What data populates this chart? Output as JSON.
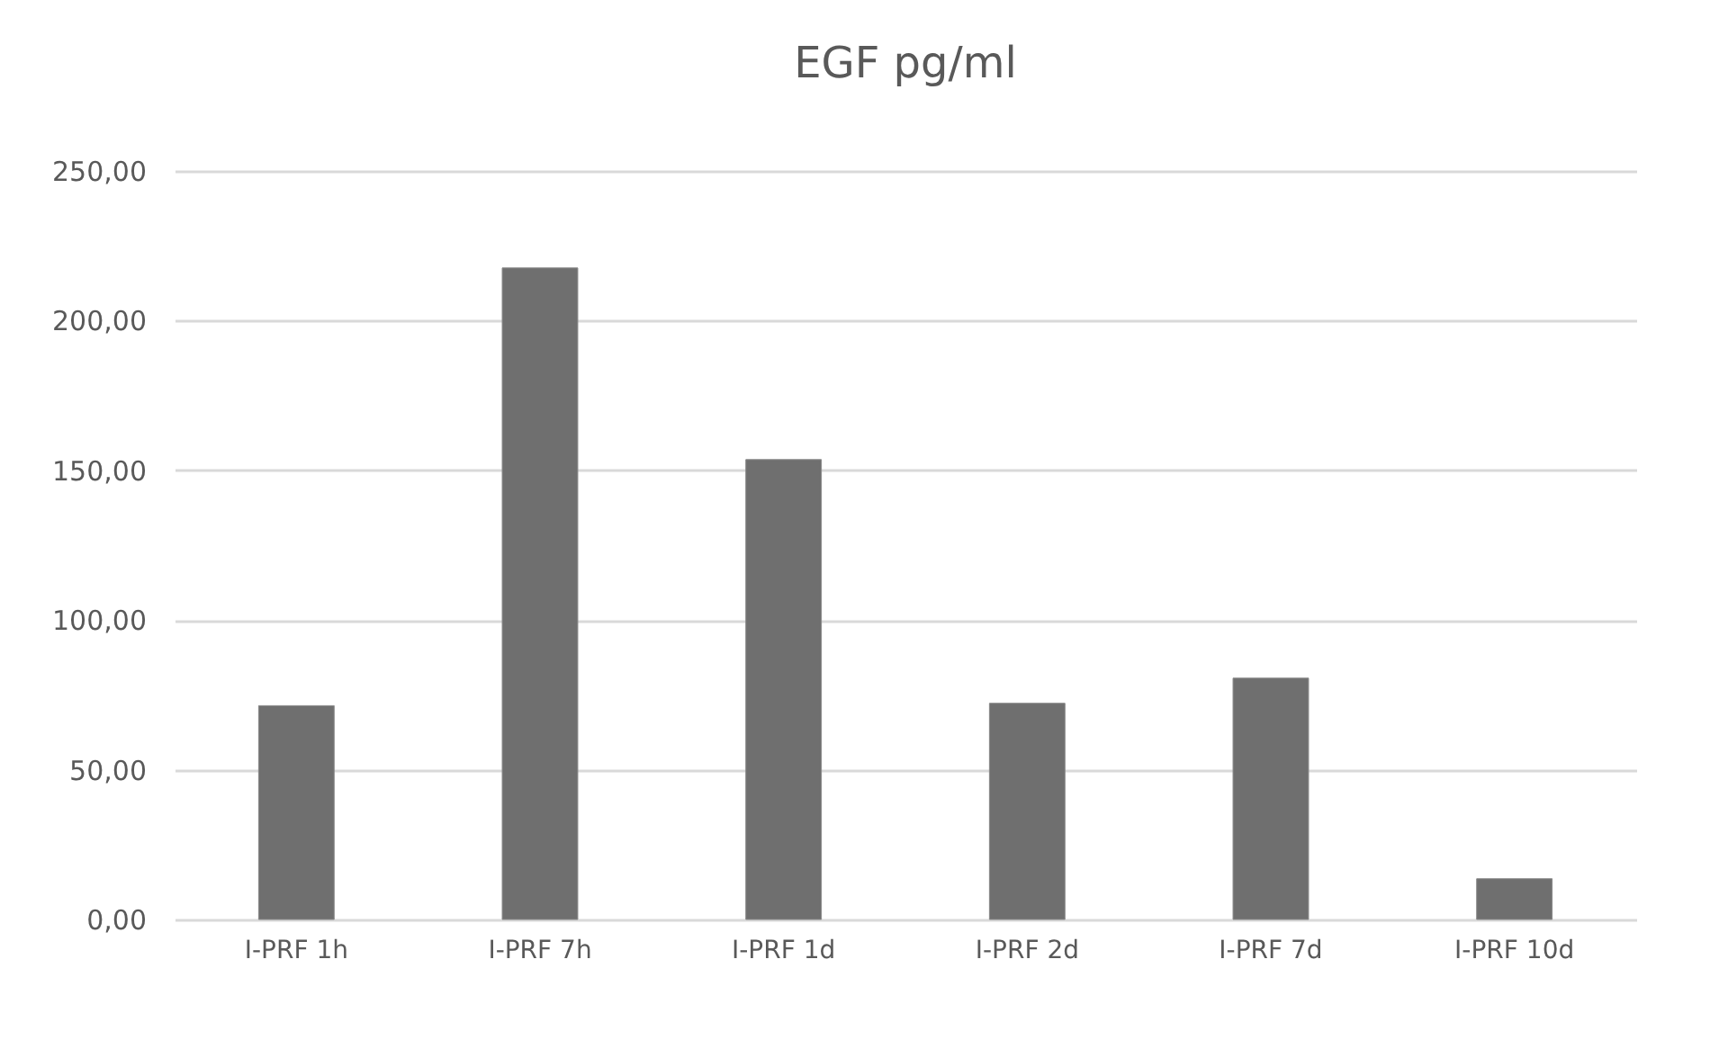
{
  "chart_data": {
    "type": "bar",
    "title": "EGF pg/ml",
    "categories": [
      "I-PRF 1h",
      "I-PRF 7h",
      "I-PRF 1d",
      "I-PRF 2d",
      "I-PRF 7d",
      "I-PRF 10d"
    ],
    "values": [
      71.4,
      217.6,
      153.6,
      72.2,
      80.6,
      13.6
    ],
    "color": "#6f6f6f",
    "ylim": [
      0,
      250
    ],
    "yticks": [
      {
        "value": 0,
        "label": "0,00"
      },
      {
        "value": 50,
        "label": "50,00"
      },
      {
        "value": 100,
        "label": "100,00"
      },
      {
        "value": 150,
        "label": "150,00"
      },
      {
        "value": 200,
        "label": "200,00"
      },
      {
        "value": 250,
        "label": "250,00"
      }
    ],
    "grid": "y"
  }
}
